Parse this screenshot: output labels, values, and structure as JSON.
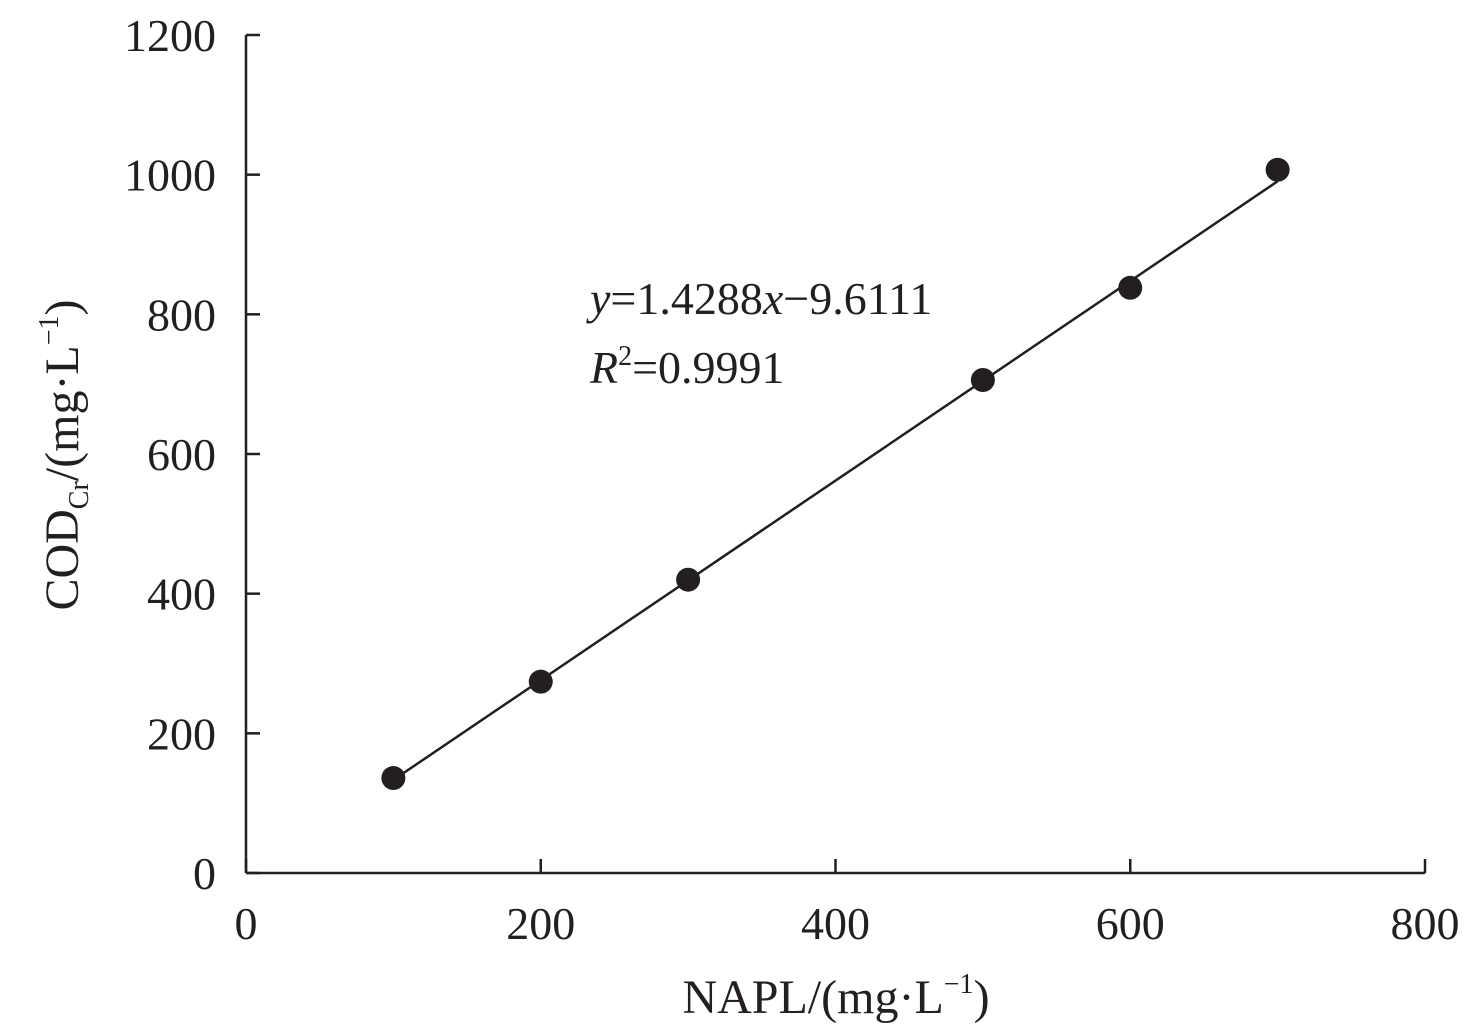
{
  "chart_data": {
    "type": "scatter",
    "title": "",
    "xlabel": {
      "main": "NAPL/(mg·L",
      "sup": "−1",
      "close": ")"
    },
    "ylabel": {
      "main": "COD",
      "sub": "Cr",
      "rest": "/(mg·L",
      "sup": "−1",
      "close": ")"
    },
    "xlim": [
      0,
      800
    ],
    "ylim": [
      0,
      1200
    ],
    "xticks": [
      0,
      200,
      400,
      600,
      800
    ],
    "yticks": [
      0,
      200,
      400,
      600,
      800,
      1000,
      1200
    ],
    "grid": false,
    "series": [
      {
        "name": "data",
        "x": [
          100,
          200,
          300,
          500,
          600,
          700
        ],
        "y": [
          136,
          274,
          420,
          706,
          838,
          1007
        ],
        "color": "#231f20"
      }
    ],
    "trendline": {
      "slope": 1.4288,
      "intercept": -9.6111,
      "x_range": [
        100,
        700
      ]
    },
    "annotations": {
      "eq_y": "y",
      "eq_mid": "=1.4288",
      "eq_x": "x",
      "eq_end": "−9.6111",
      "r_R": "R",
      "r_sup": "2",
      "r_val": "=0.9991"
    }
  }
}
